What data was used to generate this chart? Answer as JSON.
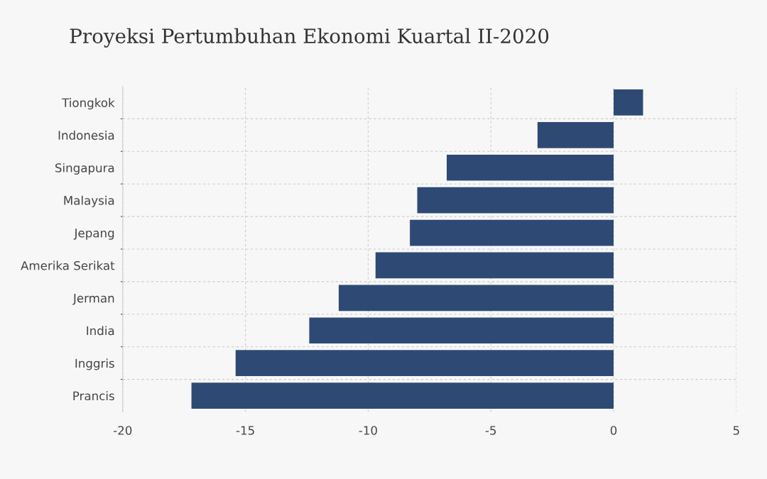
{
  "chart_data": {
    "type": "bar",
    "orientation": "horizontal",
    "title": "Proyeksi Pertumbuhan Ekonomi Kuartal II-2020",
    "categories": [
      "Tiongkok",
      "Indonesia",
      "Singapura",
      "Malaysia",
      "Jepang",
      "Amerika Serikat",
      "Jerman",
      "India",
      "Inggris",
      "Prancis"
    ],
    "values": [
      1.2,
      -3.1,
      -6.8,
      -8.0,
      -8.3,
      -9.7,
      -11.2,
      -12.4,
      -15.4,
      -17.2
    ],
    "color": "#2e4a74",
    "xlim": [
      -20,
      5
    ],
    "xticks": [
      -20,
      -15,
      -10,
      -5,
      0,
      5
    ],
    "grid": true
  }
}
